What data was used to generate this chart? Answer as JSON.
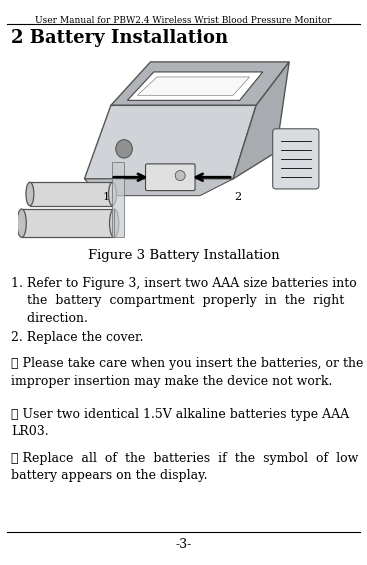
{
  "header_text": "User Manual for PBW2.4 Wireless Wrist Blood Pressure Monitor",
  "title": "2 Battery Installation",
  "figure_caption": "Figure 3 Battery Installation",
  "footer_text": "-3-",
  "bg_color": "#ffffff",
  "text_color": "#000000",
  "header_fontsize": 6.5,
  "title_fontsize": 13,
  "body_fontsize": 9.0,
  "caption_fontsize": 9.5,
  "fig_width": 3.67,
  "fig_height": 5.65,
  "dpi": 100
}
